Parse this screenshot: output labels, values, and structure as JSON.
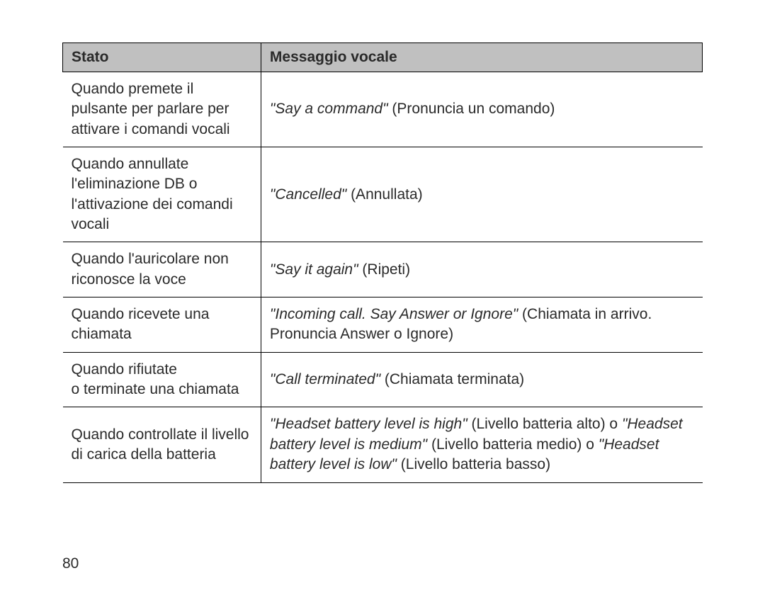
{
  "table": {
    "headers": {
      "col1": "Stato",
      "col2": "Messaggio vocale"
    },
    "rows": [
      {
        "stato": "Quando premete il pulsante per parlare per attivare i comandi vocali",
        "voice_it": "\"Say a command\"",
        "voice_rest": " (Pronuncia un comando)"
      },
      {
        "stato": "Quando annullate l'eliminazione DB o l'attivazione dei comandi vocali",
        "voice_it": "\"Cancelled\"",
        "voice_rest": " (Annullata)"
      },
      {
        "stato": "Quando l'auricolare non riconosce la voce",
        "voice_it": "\"Say it again\"",
        "voice_rest": " (Ripeti)"
      },
      {
        "stato": "Quando ricevete una chiamata",
        "voice_it": "\"Incoming call. Say Answer or Ignore\"",
        "voice_rest": " (Chiamata in arrivo. Pronuncia Answer o Ignore)"
      },
      {
        "stato_line1": "Quando rifiutate",
        "stato_line2": "o terminate una chiamata",
        "voice_it": "\"Call terminated\"",
        "voice_rest": " (Chiamata terminata)"
      },
      {
        "stato": "Quando controllate il livello di carica della batteria",
        "seg1_it": "\"Headset battery level is high\"",
        "seg1_rest": " (Livello batteria alto) o ",
        "seg2_it": "\"Headset battery level is medium\"",
        "seg2_rest": " (Livello batteria medio) o ",
        "seg3_it": "\"Headset battery level is low\"",
        "seg3_rest": " (Livello batteria basso)"
      }
    ]
  },
  "page_number": "80",
  "style": {
    "header_bg": "#c0c0c0",
    "border_color": "#000000",
    "text_color": "#2a2a2a",
    "font_size_pt": 16
  }
}
